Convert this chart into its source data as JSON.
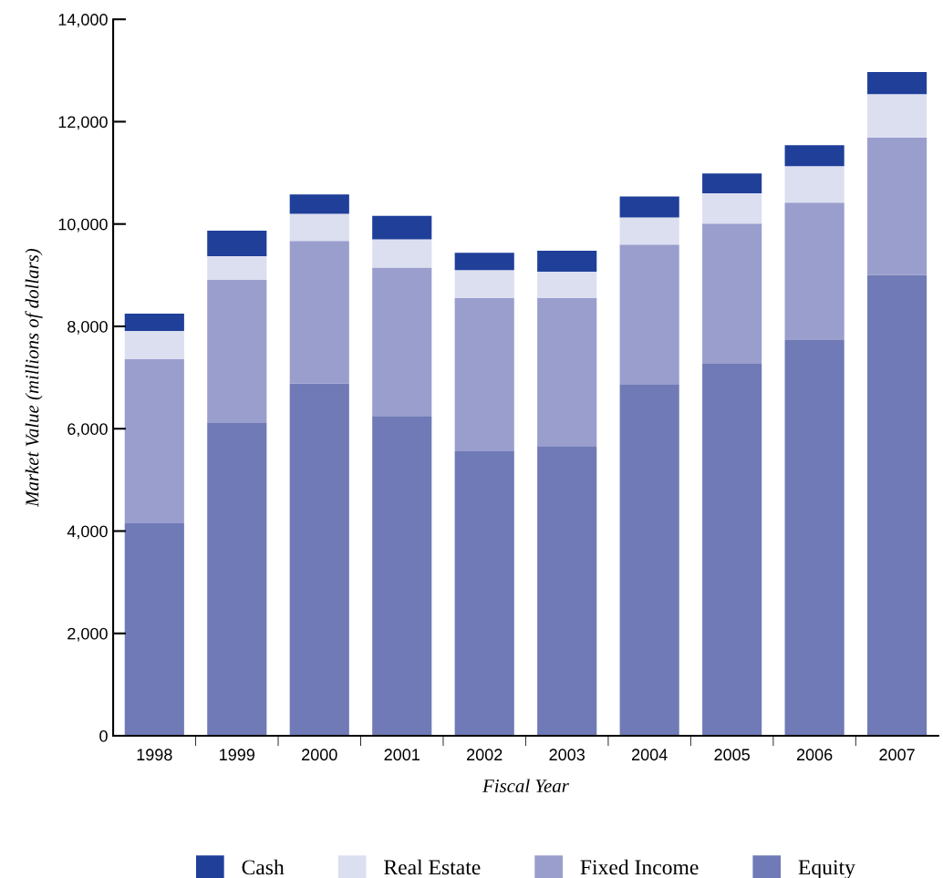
{
  "chart_data": {
    "type": "bar",
    "stacked": true,
    "xlabel": "Fiscal Year",
    "ylabel": "Market Value (millions of dollars)",
    "categories": [
      "1998",
      "1999",
      "2000",
      "2001",
      "2002",
      "2003",
      "2004",
      "2005",
      "2006",
      "2007"
    ],
    "series": [
      {
        "name": "Equity",
        "color": "#6f7ab6",
        "values": [
          4150,
          6110,
          6880,
          6250,
          5560,
          5660,
          6860,
          7270,
          7730,
          9000
        ]
      },
      {
        "name": "Fixed Income",
        "color": "#999ecd",
        "values": [
          3210,
          2800,
          2790,
          2900,
          2990,
          2890,
          2740,
          2740,
          2690,
          2690
        ]
      },
      {
        "name": "Real Estate",
        "color": "#dcdff0",
        "values": [
          550,
          460,
          530,
          550,
          550,
          520,
          530,
          590,
          710,
          850
        ]
      },
      {
        "name": "Cash",
        "color": "#1f3f99",
        "values": [
          340,
          500,
          380,
          460,
          340,
          410,
          410,
          390,
          410,
          430
        ]
      }
    ],
    "ylim": [
      0,
      14000
    ],
    "yticks": [
      {
        "value": 0,
        "label": "0"
      },
      {
        "value": 2000,
        "label": "2,000"
      },
      {
        "value": 4000,
        "label": "4,000"
      },
      {
        "value": 6000,
        "label": "6,000"
      },
      {
        "value": 8000,
        "label": "8,000"
      },
      {
        "value": 10000,
        "label": "10,000"
      },
      {
        "value": 12000,
        "label": "12,000"
      },
      {
        "value": 14000,
        "label": "14,000"
      }
    ],
    "grid": false,
    "legend": "bottom"
  }
}
